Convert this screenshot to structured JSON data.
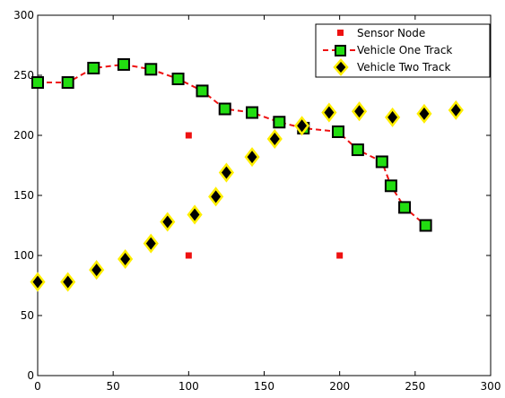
{
  "chart_data": {
    "type": "scatter",
    "title": "",
    "xlabel": "",
    "ylabel": "",
    "xlim": [
      0,
      300
    ],
    "ylim": [
      0,
      300
    ],
    "x_ticks": [
      0,
      50,
      100,
      150,
      200,
      250,
      300
    ],
    "y_ticks": [
      0,
      50,
      100,
      150,
      200,
      250,
      300
    ],
    "grid": false,
    "legend_position": "top-right",
    "series": [
      {
        "name": "Sensor Node",
        "style": "markers",
        "marker": "square",
        "marker_color": "#ee1111",
        "x": [
          100,
          100,
          200
        ],
        "y": [
          200,
          100,
          100
        ]
      },
      {
        "name": "Vehicle One Track",
        "style": "dashed-line-markers",
        "marker": "square",
        "line_color": "#ee1111",
        "marker_fill": "#22dd11",
        "marker_edge": "#000000",
        "x": [
          0,
          20,
          37,
          57,
          75,
          93,
          109,
          124,
          142,
          160,
          176,
          199,
          212,
          228,
          234,
          243,
          257
        ],
        "y": [
          244,
          244,
          256,
          259,
          255,
          247,
          237,
          222,
          219,
          211,
          206,
          203,
          188,
          178,
          158,
          140,
          125
        ]
      },
      {
        "name": "Vehicle Two Track",
        "style": "markers",
        "marker": "diamond",
        "marker_fill": "#000000",
        "marker_edge": "#ffee00",
        "x": [
          0,
          20,
          39,
          58,
          75,
          86,
          104,
          118,
          125,
          142,
          157,
          175,
          193,
          213,
          235,
          256,
          277
        ],
        "y": [
          78,
          78,
          88,
          97,
          110,
          128,
          134,
          149,
          169,
          182,
          197,
          208,
          219,
          220,
          215,
          218,
          221
        ]
      }
    ]
  },
  "legend": {
    "items": [
      "Sensor Node",
      "Vehicle One Track",
      "Vehicle Two Track"
    ]
  }
}
